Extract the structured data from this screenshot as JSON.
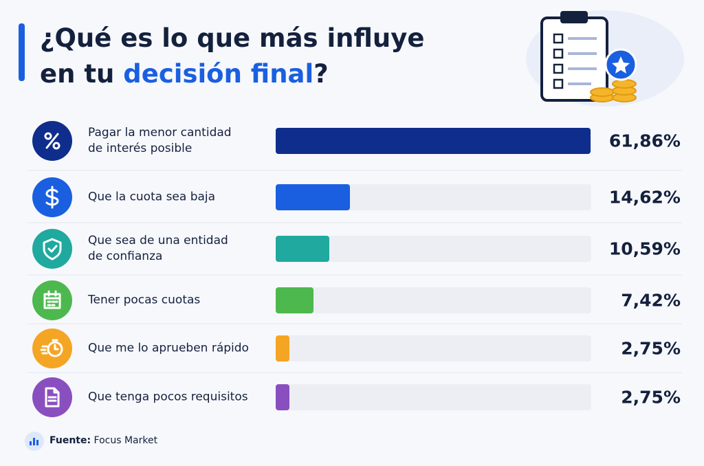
{
  "chart_data": {
    "type": "bar",
    "orientation": "horizontal",
    "title_line1": "¿Qué es lo que más influye",
    "title_line2": "en tu",
    "title_highlight": "decisión final",
    "title_end": "?",
    "categories": [
      "Pagar la menor cantidad\nde interés posible",
      "Que la cuota sea baja",
      "Que sea de una entidad\nde confianza",
      "Tener pocas cuotas",
      "Que me lo aprueben rápido",
      "Que tenga pocos requisitos"
    ],
    "values": [
      61.86,
      14.62,
      10.59,
      7.42,
      2.75,
      2.75
    ],
    "value_labels": [
      "61,86%",
      "14,62%",
      "10,59%",
      "7,42%",
      "2,75%",
      "2,75%"
    ],
    "colors": [
      "#0f2d8c",
      "#1a5fe0",
      "#20a99e",
      "#4db84e",
      "#f5a524",
      "#8a4fbf"
    ],
    "xlim": [
      0,
      62
    ],
    "source_label": "Fuente:",
    "source": "Focus Market"
  }
}
